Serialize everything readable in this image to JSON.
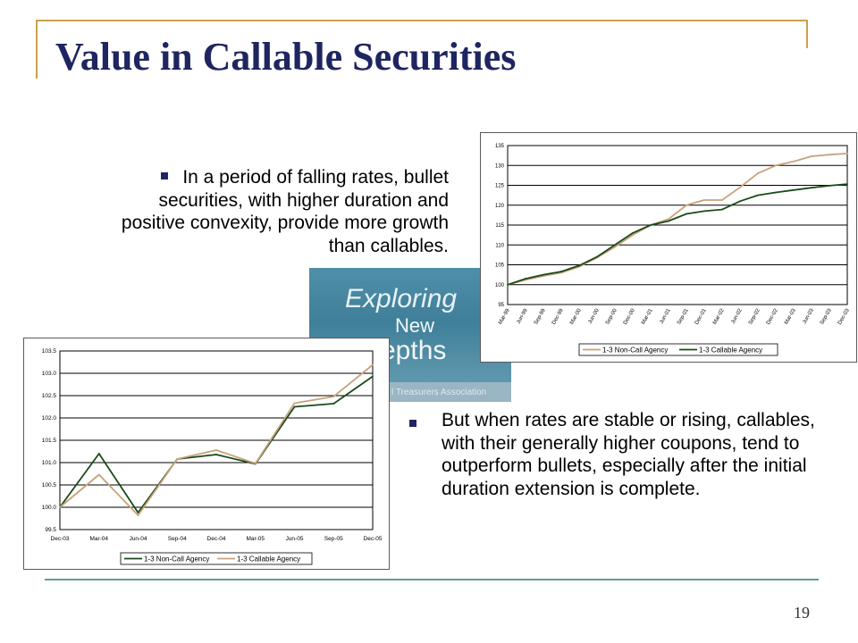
{
  "slide": {
    "title": "Value in Callable Securities",
    "bullet1": "In a period of falling rates, bullet securities, with higher duration and positive convexity, provide more growth than callables.",
    "bullet2": "But when rates are stable or rising, callables, with their generally higher coupons, tend to outperform bullets, especially after the initial duration extension is complete.",
    "page_number": "19",
    "logo": {
      "line1": "Exploring",
      "line2": "New",
      "line3": "epths",
      "footer": "l Treasurers Association"
    },
    "accent_color": "#1f2560",
    "frame_color": "#c8a24a"
  },
  "chart_data": [
    {
      "type": "line",
      "categories": [
        "Mar-99",
        "Jun-99",
        "Sep-99",
        "Dec-99",
        "Mar-00",
        "Jun-00",
        "Sep-00",
        "Dec-00",
        "Mar-01",
        "Jun-01",
        "Sep-01",
        "Dec-01",
        "Mar-02",
        "Jun-02",
        "Sep-02",
        "Dec-02",
        "Mar-03",
        "Jun-03",
        "Sep-03",
        "Dec-03"
      ],
      "ylim": [
        95,
        135
      ],
      "yticks": [
        "95",
        "100",
        "105",
        "110",
        "115",
        "120",
        "125",
        "130",
        "135"
      ],
      "grid": true,
      "legend_position": "bottom",
      "series": [
        {
          "name": "1-3 Non-Call Agency",
          "color": "#c8a27a",
          "values": [
            100,
            101.2,
            102.2,
            103,
            104.5,
            106.8,
            109.5,
            112.5,
            115,
            116.5,
            120,
            121.3,
            121.3,
            124.5,
            128,
            130,
            131,
            132.3,
            132.7,
            133
          ]
        },
        {
          "name": "1-3 Callable Agency",
          "color": "#1a4a1a",
          "values": [
            100,
            101.5,
            102.5,
            103.3,
            104.8,
            107,
            110,
            113,
            115,
            116,
            117.8,
            118.5,
            118.9,
            121,
            122.5,
            123.2,
            123.8,
            124.4,
            124.9,
            125.3
          ]
        }
      ]
    },
    {
      "type": "line",
      "categories": [
        "Dec-03",
        "Mar-04",
        "Jun-04",
        "Sep-04",
        "Dec-04",
        "Mar-05",
        "Jun-05",
        "Sep-05",
        "Dec-05"
      ],
      "ylim": [
        99.5,
        103.5
      ],
      "yticks": [
        "99.5",
        "100.0",
        "100.5",
        "101.0",
        "101.5",
        "102.0",
        "102.5",
        "103.0",
        "103.5"
      ],
      "grid": true,
      "legend_position": "bottom",
      "series": [
        {
          "name": "1-3 Non-Call Agency",
          "color": "#1a4a1a",
          "values": [
            100.0,
            101.2,
            99.88,
            101.08,
            101.18,
            100.97,
            102.25,
            102.32,
            102.93
          ]
        },
        {
          "name": "1-3 Callable Agency",
          "color": "#c8a27a",
          "values": [
            100.0,
            100.73,
            99.82,
            101.08,
            101.28,
            100.98,
            102.33,
            102.48,
            103.19
          ]
        }
      ]
    }
  ]
}
